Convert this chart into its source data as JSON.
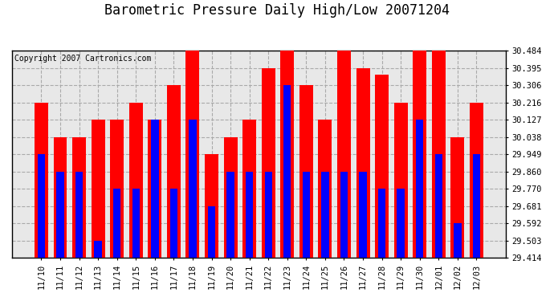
{
  "title": "Barometric Pressure Daily High/Low 20071204",
  "copyright": "Copyright 2007 Cartronics.com",
  "categories": [
    "11/10",
    "11/11",
    "11/12",
    "11/13",
    "11/14",
    "11/15",
    "11/16",
    "11/17",
    "11/18",
    "11/19",
    "11/20",
    "11/21",
    "11/22",
    "11/23",
    "11/24",
    "11/25",
    "11/26",
    "11/27",
    "11/28",
    "11/29",
    "11/30",
    "12/01",
    "12/02",
    "12/03"
  ],
  "highs": [
    30.216,
    30.038,
    30.038,
    30.127,
    30.127,
    30.216,
    30.127,
    30.306,
    30.484,
    29.949,
    30.038,
    30.127,
    30.395,
    30.484,
    30.306,
    30.127,
    30.484,
    30.395,
    30.36,
    30.216,
    30.484,
    30.484,
    30.038,
    30.216
  ],
  "lows": [
    29.949,
    29.86,
    29.86,
    29.503,
    29.77,
    29.77,
    30.127,
    29.77,
    30.127,
    29.681,
    29.86,
    29.86,
    29.86,
    30.306,
    29.86,
    29.86,
    29.86,
    29.86,
    29.77,
    29.77,
    30.127,
    29.949,
    29.592,
    29.949
  ],
  "high_color": "#ff0000",
  "low_color": "#0000ff",
  "bg_color": "#ffffff",
  "plot_bg_color": "#e8e8e8",
  "grid_color": "#aaaaaa",
  "ylim_min": 29.414,
  "ylim_max": 30.484,
  "yticks": [
    29.414,
    29.503,
    29.592,
    29.681,
    29.77,
    29.86,
    29.949,
    30.038,
    30.127,
    30.216,
    30.306,
    30.395,
    30.484
  ],
  "title_fontsize": 12,
  "tick_fontsize": 7.5,
  "copyright_fontsize": 7
}
